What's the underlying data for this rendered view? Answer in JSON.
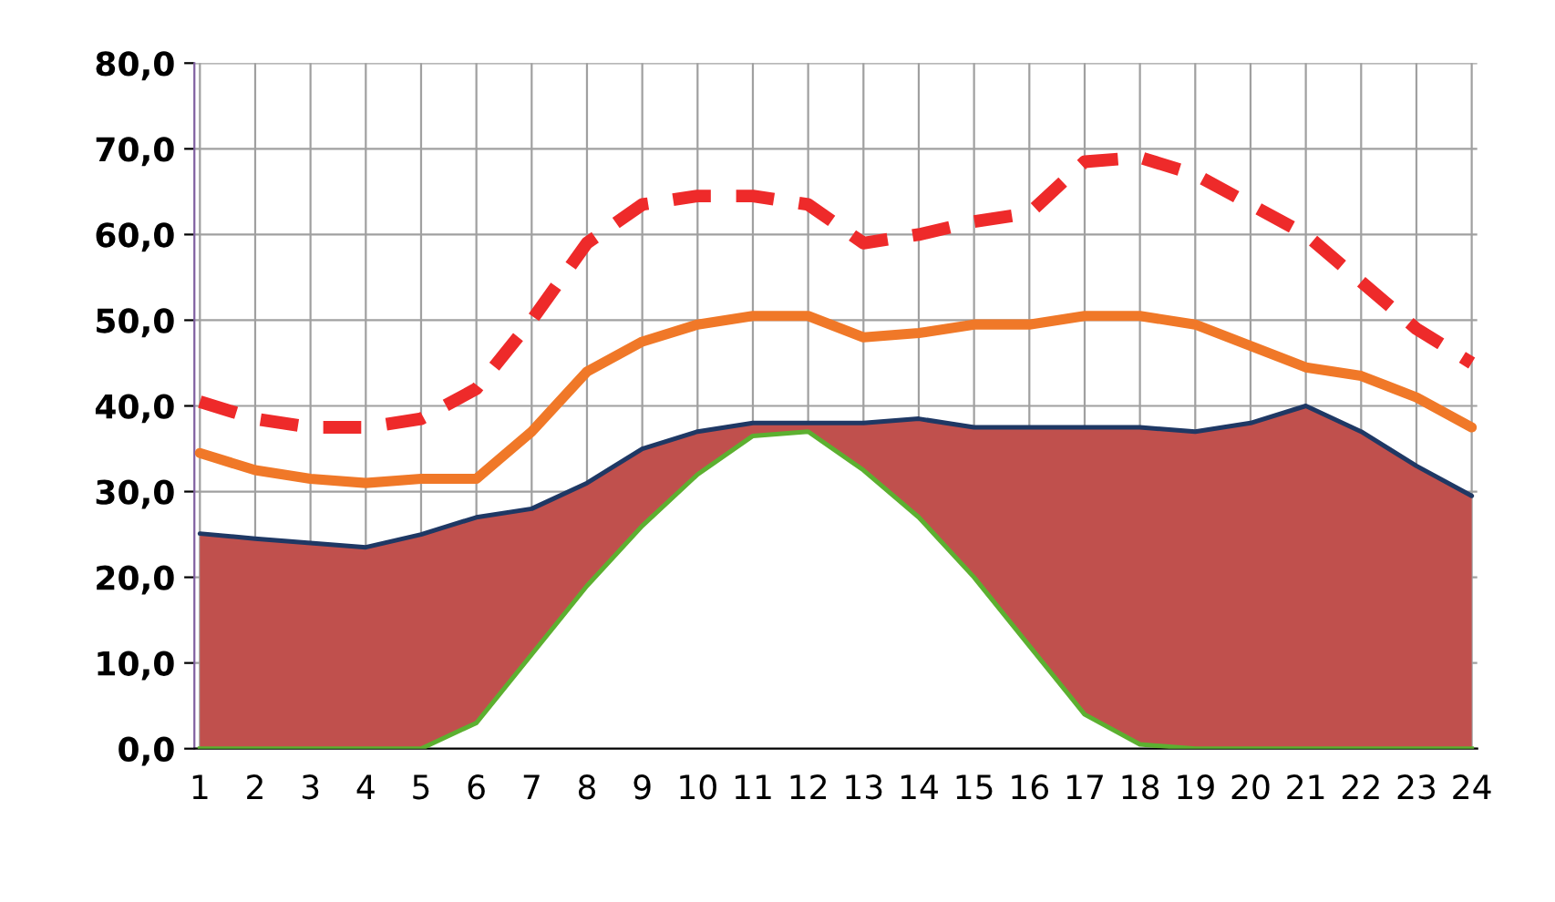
{
  "chart_data": {
    "type": "line",
    "categories": [
      "1",
      "2",
      "3",
      "4",
      "5",
      "6",
      "7",
      "8",
      "9",
      "10",
      "11",
      "12",
      "13",
      "14",
      "15",
      "16",
      "17",
      "18",
      "19",
      "20",
      "21",
      "22",
      "23",
      "24"
    ],
    "series": [
      {
        "type": "area",
        "color": "#5cb030",
        "values": [
          0,
          0,
          0,
          0,
          0,
          3,
          11,
          19,
          26,
          32,
          36.5,
          37,
          32.5,
          27,
          20,
          12,
          4,
          0.5,
          0,
          0,
          0,
          0,
          0,
          0
        ]
      },
      {
        "type": "area",
        "color": "#c0504d",
        "values": [
          25.1,
          24.5,
          24,
          23.5,
          25,
          24,
          17,
          12,
          9,
          5,
          1.5,
          1,
          5.5,
          11.5,
          17.5,
          25.5,
          33.5,
          37,
          37,
          38,
          40,
          37,
          33,
          29.5
        ]
      },
      {
        "color": "#1f3864",
        "values": [
          25.1,
          24.5,
          24,
          23.5,
          25,
          27,
          28,
          31,
          35,
          37,
          38,
          38,
          38,
          38.5,
          37.5,
          37.5,
          37.5,
          37.5,
          37,
          38,
          40,
          37,
          33,
          29.5
        ]
      },
      {
        "color": "#f07828",
        "values": [
          34.5,
          32.5,
          31.5,
          31,
          31.5,
          31.5,
          37,
          44,
          47.5,
          49.5,
          50.5,
          50.5,
          48,
          48.5,
          49.5,
          49.5,
          50.5,
          50.5,
          49.5,
          47,
          44.5,
          43.5,
          41,
          37.5
        ]
      },
      {
        "color": "#ee2a2a",
        "line_style": "dashed",
        "values": [
          40.5,
          38.5,
          37.5,
          37.5,
          38.5,
          42,
          50,
          59,
          63.5,
          64.5,
          64.5,
          63.5,
          59,
          60,
          61.5,
          62.5,
          68.5,
          69,
          67,
          63.5,
          60,
          54.5,
          49,
          45
        ]
      }
    ],
    "ylim": [
      0,
      80
    ],
    "yticks": [
      {
        "value": 0,
        "label": "0,0"
      },
      {
        "value": 10,
        "label": "10,0"
      },
      {
        "value": 20,
        "label": "20,0"
      },
      {
        "value": 30,
        "label": "30,0"
      },
      {
        "value": 40,
        "label": "40,0"
      },
      {
        "value": 50,
        "label": "50,0"
      },
      {
        "value": 60,
        "label": "60,0"
      },
      {
        "value": 70,
        "label": "70,0"
      },
      {
        "value": 80,
        "label": "80,0"
      }
    ],
    "stacked": true,
    "grid": true
  }
}
